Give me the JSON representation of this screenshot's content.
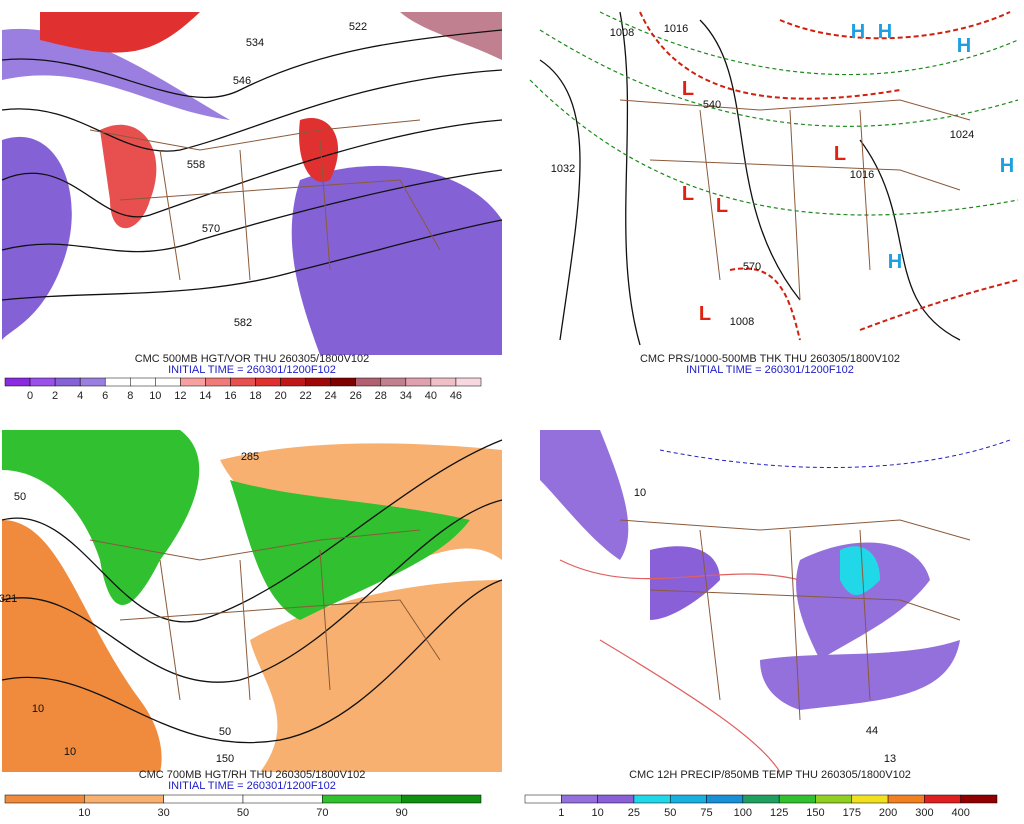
{
  "panels": [
    {
      "caption": "CMC 500MB HGT/VOR THU 260305/1800V102",
      "initial_time": "INITIAL TIME = 260301/1200F102",
      "colorbar": {
        "labels": [
          "0",
          "2",
          "4",
          "6",
          "8",
          "10",
          "12",
          "14",
          "16",
          "18",
          "20",
          "22",
          "24",
          "26",
          "28",
          "34",
          "40",
          "46"
        ],
        "colors": [
          "#8a2be2",
          "#9a50ea",
          "#8462d6",
          "#9b7fe0",
          "#ffffff",
          "#ffffff",
          "#ffffff",
          "#f7a0a0",
          "#f07a7a",
          "#e85050",
          "#e03030",
          "#c01818",
          "#a00808",
          "#800000",
          "#b06070",
          "#c08090",
          "#e0a0b0",
          "#f0c0c8",
          "#f8d8e0"
        ]
      },
      "map_labels": [
        "534",
        "546",
        "558",
        "570",
        "582",
        "522"
      ]
    },
    {
      "caption": "CMC PRS/1000-500MB THK THU 260305/1800V102",
      "initial_time": "INITIAL TIME = 260301/1200F102",
      "map_labels": [
        "1008",
        "1016",
        "1032",
        "1024",
        "1016",
        "540",
        "570",
        "1008",
        "L",
        "L",
        "L",
        "L",
        "L",
        "H",
        "H",
        "H",
        "H",
        "H"
      ]
    },
    {
      "caption": "CMC 700MB HGT/RH THU 260305/1800V102",
      "initial_time": "INITIAL TIME = 260301/1200F102",
      "colorbar": {
        "labels": [
          "10",
          "30",
          "50",
          "70",
          "90"
        ],
        "colors": [
          "#f08a3c",
          "#f8b070",
          "#ffffff",
          "#ffffff",
          "#30c030",
          "#109010"
        ]
      },
      "map_labels": [
        "285",
        "50",
        "10",
        "10",
        "321",
        "50",
        "150"
      ]
    },
    {
      "caption": "CMC 12H PRECIP/850MB TEMP THU 260305/1800V102",
      "colorbar": {
        "labels": [
          "1",
          "10",
          "25",
          "50",
          "75",
          "100",
          "125",
          "150",
          "175",
          "200",
          "300",
          "400"
        ],
        "colors": [
          "#ffffff",
          "#9370db",
          "#8a60d8",
          "#20d8e8",
          "#18b0e0",
          "#1890d8",
          "#20a060",
          "#30c030",
          "#90d020",
          "#f0e020",
          "#f08020",
          "#e02020",
          "#900000"
        ]
      },
      "map_labels": [
        "44",
        "13",
        "10"
      ]
    }
  ]
}
